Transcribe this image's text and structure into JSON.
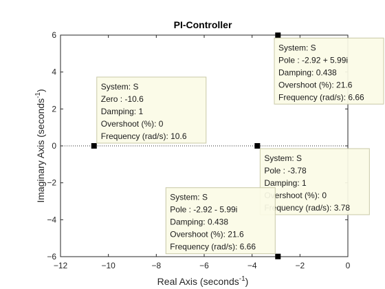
{
  "chart_data": {
    "type": "scatter",
    "title": "PI-Controller",
    "xlabel": "Real Axis (seconds",
    "ylabel": "Imaginary Axis (seconds",
    "axis_unit_exponent": "-1",
    "axis_label_close": ")",
    "xlim": [
      -12,
      0
    ],
    "ylim": [
      -6,
      6
    ],
    "xticks": [
      -12,
      -10,
      -8,
      -6,
      -4,
      -2,
      0
    ],
    "yticks": [
      -6,
      -4,
      -2,
      0,
      2,
      4,
      6
    ],
    "grid": false,
    "zero_line": "dotted",
    "colors": {
      "marker": "#000000",
      "tip_bg": "#fbfbe6",
      "tip_border": "#c8c8a6",
      "axis": "#262626"
    },
    "points": [
      {
        "x": -10.6,
        "y": 0,
        "kind": "zero",
        "tip_anchor": "upper-right",
        "tip_lines": [
          "System: S",
          "Zero : -10.6",
          "Damping: 1",
          "Overshoot (%): 0",
          "Frequency (rad/s): 10.6"
        ]
      },
      {
        "x": -3.78,
        "y": 0,
        "kind": "pole",
        "tip_anchor": "lower-right",
        "tip_lines": [
          "System: S",
          "Pole : -3.78",
          "Damping: 1",
          "Overshoot (%): 0",
          "Frequency (rad/s): 3.78"
        ]
      },
      {
        "x": -2.92,
        "y": 5.99,
        "kind": "pole",
        "tip_anchor": "lower-right",
        "tip_lines": [
          "System: S",
          "Pole : -2.92 + 5.99i",
          "Damping: 0.438",
          "Overshoot (%): 21.6",
          "Frequency (rad/s): 6.66"
        ]
      },
      {
        "x": -2.92,
        "y": -5.99,
        "kind": "pole",
        "tip_anchor": "upper-left",
        "tip_lines": [
          "System: S",
          "Pole : -2.92 - 5.99i",
          "Damping: 0.438",
          "Overshoot (%): 21.6",
          "Frequency (rad/s): 6.66"
        ]
      }
    ]
  }
}
